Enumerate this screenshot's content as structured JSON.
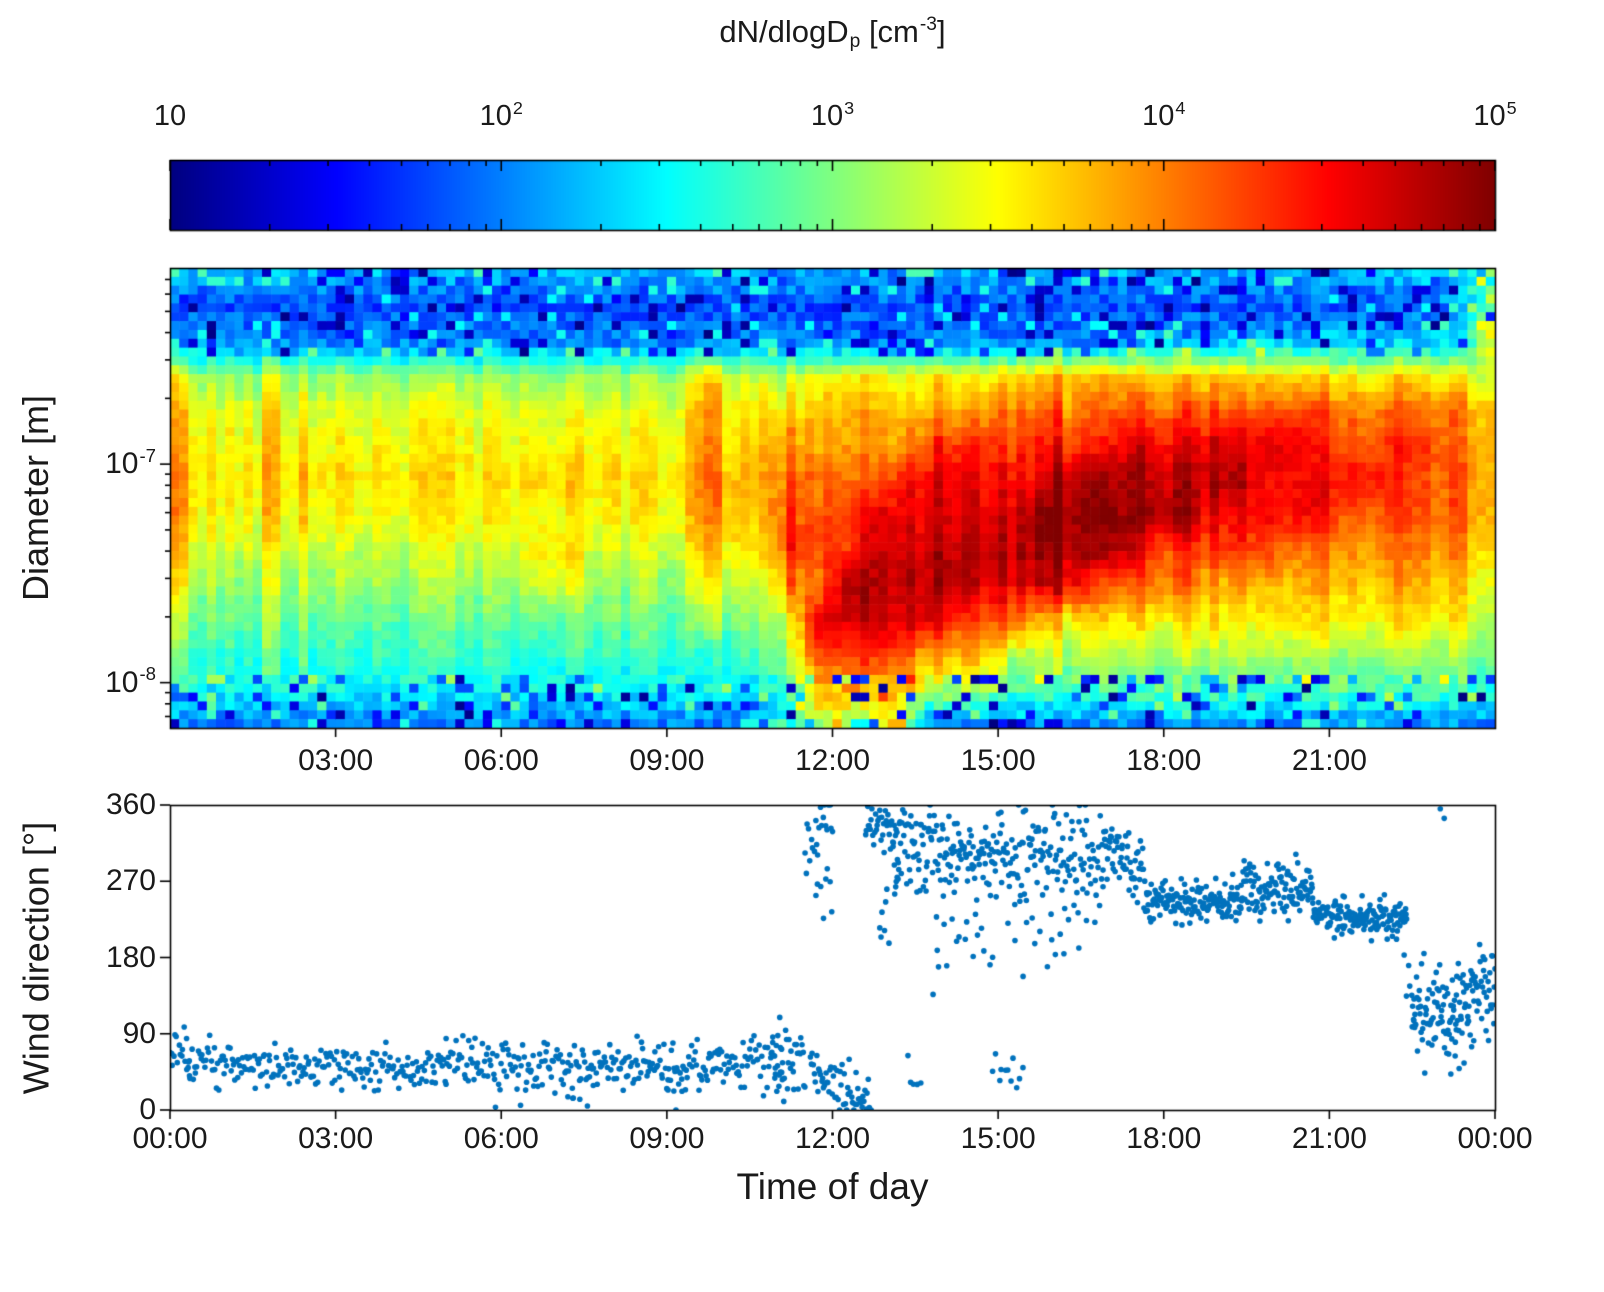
{
  "figure": {
    "background": "#ffffff",
    "text_color": "#1a1a1a"
  },
  "colorbar": {
    "title_parts": [
      {
        "text": "dN/dlogD"
      },
      {
        "sub": "p"
      },
      {
        "text": " [cm"
      },
      {
        "sup": "-3"
      },
      {
        "text": "]"
      }
    ],
    "scale": "log",
    "range": [
      10,
      100000
    ],
    "colormap": "jet",
    "ticks": [
      {
        "lg": 1,
        "label": "10"
      },
      {
        "lg": 2,
        "label": "10^2"
      },
      {
        "lg": 3,
        "label": "10^3"
      },
      {
        "lg": 4,
        "label": "10^4"
      },
      {
        "lg": 5,
        "label": "10^5"
      }
    ]
  },
  "chart_data": [
    {
      "type": "heatmap",
      "title": "",
      "xlabel": "",
      "ylabel": "Diameter  [m]",
      "x_range_hours": [
        0,
        24
      ],
      "x_ticks": [
        {
          "hour": 3,
          "label": "03:00"
        },
        {
          "hour": 6,
          "label": "06:00"
        },
        {
          "hour": 9,
          "label": "09:00"
        },
        {
          "hour": 12,
          "label": "12:00"
        },
        {
          "hour": 15,
          "label": "15:00"
        },
        {
          "hour": 18,
          "label": "18:00"
        },
        {
          "hour": 21,
          "label": "21:00"
        }
      ],
      "y_scale": "log",
      "y_range_m": [
        6.2e-09,
        7.9e-07
      ],
      "y_ticks": [
        {
          "value": 1e-07,
          "label": "10^-7"
        },
        {
          "value": 1e-08,
          "label": "10^-8"
        }
      ],
      "color_scale": {
        "type": "log",
        "range": [
          10,
          100000
        ],
        "colormap": "jet",
        "label": "dN/dlogD_p [cm^-3]"
      },
      "description": "Aerosol number size distribution; new particle formation event starting ~11:30 with growing dark-red banana through afternoon; speckled low-concentration bands at largest and smallest diameters",
      "grid_log10_values": {
        "n_time_cols": 48,
        "n_diam_rows": 14,
        "rows_top_to_bottom": [
          [
            2.2,
            2.2,
            2.2,
            2.2,
            2.2,
            2.2,
            2.2,
            2.2,
            2.2,
            2.2,
            2.2,
            2.2,
            2.2,
            2.2,
            2.2,
            2.2,
            2.2,
            2.2,
            2.2,
            2.2,
            2.2,
            2.2,
            2.2,
            2.2,
            2.2,
            2.2,
            2.2,
            2.2,
            2.2,
            2.2,
            2.2,
            2.2,
            2.2,
            2.2,
            2.2,
            2.2,
            2.2,
            2.2,
            2.2,
            2.2,
            2.2,
            2.2,
            2.2,
            2.2,
            2.3,
            2.3,
            2.2,
            3.2
          ],
          [
            1.8,
            1.8,
            1.8,
            1.8,
            1.8,
            1.8,
            1.8,
            1.8,
            1.8,
            1.8,
            1.8,
            1.8,
            1.8,
            1.8,
            1.8,
            1.8,
            1.8,
            1.8,
            1.8,
            1.8,
            1.8,
            1.8,
            1.8,
            1.8,
            1.8,
            1.8,
            1.8,
            1.8,
            1.8,
            1.8,
            1.8,
            1.8,
            1.8,
            1.8,
            1.8,
            1.8,
            1.8,
            1.8,
            1.8,
            1.8,
            1.8,
            1.8,
            1.8,
            1.8,
            1.9,
            1.9,
            2.2,
            3.0
          ],
          [
            2.0,
            2.0,
            2.0,
            2.0,
            2.0,
            2.0,
            2.0,
            2.0,
            2.0,
            2.0,
            2.0,
            2.0,
            2.0,
            2.0,
            2.0,
            2.0,
            2.0,
            2.0,
            2.0,
            2.0,
            2.0,
            2.0,
            2.0,
            2.0,
            2.0,
            2.0,
            2.0,
            2.0,
            2.0,
            2.0,
            2.0,
            2.0,
            2.0,
            2.0,
            2.0,
            2.3,
            2.3,
            2.3,
            2.3,
            2.3,
            2.3,
            2.3,
            2.3,
            2.3,
            2.3,
            2.3,
            2.3,
            3.4
          ],
          [
            3.6,
            3.1,
            3.1,
            3.1,
            3.1,
            3.1,
            3.1,
            3.1,
            3.1,
            3.1,
            3.1,
            3.1,
            3.1,
            3.1,
            3.1,
            3.1,
            3.1,
            3.1,
            3.1,
            3.8,
            3.2,
            3.2,
            3.2,
            3.5,
            3.5,
            3.5,
            3.5,
            3.5,
            3.5,
            3.5,
            3.7,
            3.7,
            3.7,
            3.7,
            3.7,
            3.7,
            3.7,
            3.7,
            3.7,
            3.7,
            3.7,
            3.6,
            3.6,
            3.6,
            3.6,
            3.6,
            3.6,
            3.2
          ],
          [
            3.8,
            3.4,
            3.4,
            3.4,
            3.4,
            3.4,
            3.4,
            3.4,
            3.4,
            3.4,
            3.4,
            3.4,
            3.4,
            3.4,
            3.4,
            3.4,
            3.4,
            3.4,
            3.4,
            4.0,
            3.5,
            3.5,
            3.6,
            3.8,
            3.8,
            3.8,
            3.8,
            3.8,
            3.8,
            4.0,
            4.0,
            4.0,
            4.0,
            4.0,
            4.2,
            4.2,
            4.2,
            4.2,
            4.2,
            4.2,
            4.2,
            4.2,
            4.1,
            4.1,
            4.1,
            4.1,
            4.1,
            3.6
          ],
          [
            3.9,
            3.5,
            3.5,
            3.5,
            3.5,
            3.5,
            3.5,
            3.5,
            3.5,
            3.5,
            3.5,
            3.5,
            3.5,
            3.5,
            3.5,
            3.5,
            3.5,
            3.5,
            3.5,
            4.1,
            3.6,
            3.6,
            3.9,
            3.9,
            3.9,
            3.9,
            3.9,
            4.3,
            4.3,
            4.3,
            4.3,
            4.3,
            4.3,
            4.3,
            4.6,
            4.6,
            4.6,
            4.6,
            4.6,
            4.6,
            4.6,
            4.3,
            4.3,
            4.3,
            4.3,
            4.3,
            4.1,
            3.7
          ],
          [
            4.0,
            3.6,
            3.6,
            3.6,
            3.6,
            3.6,
            3.6,
            3.6,
            3.6,
            3.6,
            3.6,
            3.6,
            3.6,
            3.7,
            3.7,
            3.6,
            3.6,
            3.6,
            3.6,
            4.2,
            3.7,
            3.7,
            4.1,
            4.1,
            4.1,
            4.1,
            4.5,
            4.5,
            4.5,
            4.5,
            4.5,
            4.5,
            4.8,
            4.8,
            4.8,
            4.8,
            4.8,
            4.8,
            4.8,
            4.5,
            4.5,
            4.5,
            4.5,
            4.5,
            4.2,
            4.2,
            4.2,
            3.7
          ],
          [
            4.0,
            3.5,
            3.5,
            3.5,
            3.5,
            3.5,
            3.5,
            3.5,
            3.5,
            3.5,
            3.5,
            3.5,
            3.5,
            3.5,
            3.5,
            3.5,
            3.5,
            3.5,
            3.5,
            4.1,
            3.7,
            3.7,
            4.2,
            4.2,
            4.2,
            4.6,
            4.6,
            4.6,
            4.6,
            4.6,
            4.6,
            4.9,
            4.9,
            4.9,
            4.9,
            4.9,
            4.9,
            4.5,
            4.5,
            4.5,
            4.5,
            4.5,
            4.2,
            4.2,
            4.2,
            4.2,
            4.2,
            3.7
          ],
          [
            3.8,
            3.3,
            3.3,
            3.3,
            3.3,
            3.3,
            3.3,
            3.3,
            3.3,
            3.3,
            3.3,
            3.3,
            3.3,
            3.6,
            3.6,
            3.3,
            3.3,
            3.3,
            3.3,
            3.9,
            3.5,
            3.5,
            4.3,
            4.3,
            4.3,
            4.7,
            4.7,
            4.7,
            4.7,
            4.7,
            4.8,
            4.8,
            4.8,
            4.8,
            4.8,
            4.3,
            4.3,
            4.3,
            4.3,
            4.3,
            4.0,
            4.0,
            4.0,
            4.0,
            4.0,
            4.0,
            4.0,
            3.5
          ],
          [
            3.6,
            3.1,
            3.1,
            3.1,
            3.1,
            3.1,
            3.1,
            3.1,
            3.1,
            3.1,
            3.1,
            3.1,
            3.1,
            3.4,
            3.4,
            3.1,
            3.1,
            3.1,
            3.1,
            3.6,
            3.2,
            3.2,
            4.0,
            4.0,
            4.8,
            4.8,
            4.8,
            4.8,
            4.8,
            4.6,
            4.6,
            4.6,
            4.6,
            4.1,
            4.1,
            4.1,
            4.1,
            3.8,
            3.8,
            3.8,
            3.8,
            3.8,
            3.8,
            3.8,
            3.8,
            3.8,
            3.8,
            3.3
          ],
          [
            3.3,
            2.9,
            2.9,
            2.9,
            2.9,
            2.9,
            2.9,
            2.9,
            2.9,
            2.9,
            2.9,
            2.9,
            2.9,
            2.9,
            2.9,
            2.9,
            2.9,
            2.9,
            2.9,
            3.2,
            3.0,
            3.0,
            3.4,
            4.7,
            4.7,
            4.7,
            4.7,
            4.7,
            4.2,
            4.2,
            4.2,
            3.6,
            3.6,
            3.6,
            3.6,
            3.6,
            3.6,
            3.6,
            3.6,
            3.6,
            3.6,
            3.6,
            3.6,
            3.6,
            3.6,
            3.6,
            3.6,
            3.1
          ],
          [
            3.0,
            2.7,
            2.7,
            2.7,
            2.7,
            2.7,
            2.7,
            2.7,
            2.7,
            2.7,
            2.7,
            2.7,
            2.7,
            2.7,
            2.7,
            2.7,
            2.7,
            2.7,
            2.7,
            2.7,
            2.7,
            2.7,
            3.2,
            4.3,
            4.3,
            4.3,
            4.3,
            3.8,
            3.8,
            3.8,
            3.2,
            3.2,
            3.2,
            3.2,
            3.2,
            3.2,
            3.2,
            3.2,
            3.2,
            3.2,
            3.2,
            3.2,
            3.2,
            3.2,
            3.2,
            3.2,
            3.2,
            2.9
          ],
          [
            2.7,
            2.5,
            2.5,
            2.5,
            2.5,
            2.5,
            2.5,
            2.5,
            2.5,
            2.5,
            2.5,
            2.5,
            2.5,
            2.5,
            2.5,
            2.5,
            2.5,
            2.5,
            2.5,
            2.5,
            2.5,
            2.5,
            2.8,
            3.8,
            3.8,
            3.8,
            3.8,
            3.2,
            3.2,
            3.2,
            2.8,
            2.8,
            2.8,
            2.8,
            2.8,
            2.8,
            2.8,
            2.8,
            2.8,
            2.8,
            2.8,
            2.8,
            2.8,
            2.8,
            2.8,
            2.8,
            2.8,
            2.6
          ],
          [
            2.1,
            2.0,
            2.0,
            2.0,
            2.0,
            2.0,
            2.0,
            2.0,
            2.0,
            2.0,
            2.0,
            2.0,
            2.0,
            2.0,
            2.0,
            2.0,
            2.0,
            2.0,
            2.0,
            2.0,
            2.0,
            2.0,
            2.4,
            3.2,
            3.2,
            3.2,
            3.2,
            2.1,
            2.1,
            2.1,
            2.1,
            2.1,
            2.1,
            2.1,
            2.1,
            2.1,
            2.1,
            2.1,
            2.1,
            2.1,
            2.1,
            2.1,
            2.1,
            2.1,
            2.1,
            2.1,
            2.1,
            2.0
          ]
        ]
      },
      "render_hints": {
        "cell_cols": 144,
        "cell_rows": 52,
        "noise_mid": 0.22,
        "noise_speckle": 0.5,
        "speckle_row_top": 2.3,
        "speckle_row_bottom": 11.6
      }
    },
    {
      "type": "scatter",
      "title": "",
      "xlabel": "Time of day",
      "ylabel": "Wind direction [°]",
      "x_range_hours": [
        0,
        24
      ],
      "x_ticks": [
        {
          "hour": 0,
          "label": "00:00"
        },
        {
          "hour": 3,
          "label": "03:00"
        },
        {
          "hour": 6,
          "label": "06:00"
        },
        {
          "hour": 9,
          "label": "09:00"
        },
        {
          "hour": 12,
          "label": "12:00"
        },
        {
          "hour": 15,
          "label": "15:00"
        },
        {
          "hour": 18,
          "label": "18:00"
        },
        {
          "hour": 21,
          "label": "21:00"
        },
        {
          "hour": 24,
          "label": "00:00"
        }
      ],
      "y_range": [
        0,
        360
      ],
      "y_ticks": [
        {
          "value": 0,
          "label": "0"
        },
        {
          "value": 90,
          "label": "90"
        },
        {
          "value": 180,
          "label": "180"
        },
        {
          "value": 270,
          "label": "270"
        },
        {
          "value": 360,
          "label": "360"
        }
      ],
      "marker_color": "#0072BD",
      "marker_radius_px": 2.8,
      "segments": [
        {
          "t0": 0.0,
          "t1": 0.35,
          "n": 16,
          "y0": 82,
          "y1": 62,
          "s": 16
        },
        {
          "t0": 0.3,
          "t1": 5.0,
          "n": 200,
          "y0": 55,
          "y1": 47,
          "s": 13
        },
        {
          "t0": 5.0,
          "t1": 6.3,
          "n": 60,
          "y0": 60,
          "y1": 56,
          "s": 16
        },
        {
          "t0": 6.3,
          "t1": 11.1,
          "n": 215,
          "y0": 48,
          "y1": 52,
          "s": 14
        },
        {
          "t0": 7.2,
          "t1": 7.7,
          "n": 5,
          "y0": 12,
          "y1": 18,
          "s": 8
        },
        {
          "t0": 9.0,
          "t1": 9.3,
          "n": 4,
          "y0": 15,
          "y1": 20,
          "s": 8
        },
        {
          "t0": 10.9,
          "t1": 11.5,
          "n": 35,
          "y0": 60,
          "y1": 62,
          "s": 20
        },
        {
          "t0": 11.5,
          "t1": 12.0,
          "n": 22,
          "y0": 330,
          "y1": 340,
          "s": 22
        },
        {
          "t0": 11.7,
          "t1": 12.0,
          "n": 8,
          "y0": 255,
          "y1": 230,
          "s": 30
        },
        {
          "t0": 11.6,
          "t1": 12.7,
          "n": 60,
          "y0": 48,
          "y1": 4,
          "s": 15
        },
        {
          "t0": 12.6,
          "t1": 13.2,
          "n": 38,
          "y0": 345,
          "y1": 325,
          "s": 18
        },
        {
          "t0": 12.85,
          "t1": 13.05,
          "n": 8,
          "y0": 210,
          "y1": 260,
          "s": 45
        },
        {
          "t0": 13.1,
          "t1": 15.1,
          "n": 150,
          "y0": 310,
          "y1": 300,
          "s": 26
        },
        {
          "t0": 13.8,
          "t1": 14.9,
          "n": 16,
          "y0": 205,
          "y1": 190,
          "s": 28
        },
        {
          "t0": 13.35,
          "t1": 13.6,
          "n": 5,
          "y0": 45,
          "y1": 40,
          "s": 14
        },
        {
          "t0": 14.9,
          "t1": 15.45,
          "n": 11,
          "y0": 55,
          "y1": 30,
          "s": 20
        },
        {
          "t0": 15.1,
          "t1": 16.9,
          "n": 120,
          "y0": 300,
          "y1": 290,
          "s": 32
        },
        {
          "t0": 15.3,
          "t1": 16.6,
          "n": 18,
          "y0": 205,
          "y1": 215,
          "s": 24
        },
        {
          "t0": 16.9,
          "t1": 17.7,
          "n": 60,
          "y0": 312,
          "y1": 268,
          "s": 22
        },
        {
          "t0": 17.7,
          "t1": 19.4,
          "n": 135,
          "y0": 250,
          "y1": 246,
          "s": 13
        },
        {
          "t0": 19.4,
          "t1": 20.7,
          "n": 110,
          "y0": 258,
          "y1": 262,
          "s": 15
        },
        {
          "t0": 20.7,
          "t1": 22.4,
          "n": 150,
          "y0": 231,
          "y1": 224,
          "s": 11
        },
        {
          "t0": 22.35,
          "t1": 22.55,
          "n": 8,
          "y0": 190,
          "y1": 140,
          "s": 28
        },
        {
          "t0": 22.5,
          "t1": 23.3,
          "n": 75,
          "y0": 112,
          "y1": 108,
          "s": 26
        },
        {
          "t0": 23.0,
          "t1": 23.08,
          "n": 2,
          "y0": 350,
          "y1": 348,
          "s": 4
        },
        {
          "t0": 23.3,
          "t1": 24.0,
          "n": 62,
          "y0": 128,
          "y1": 152,
          "s": 30
        },
        {
          "t0": 23.2,
          "t1": 23.65,
          "n": 6,
          "y0": 52,
          "y1": 56,
          "s": 12
        }
      ]
    }
  ]
}
